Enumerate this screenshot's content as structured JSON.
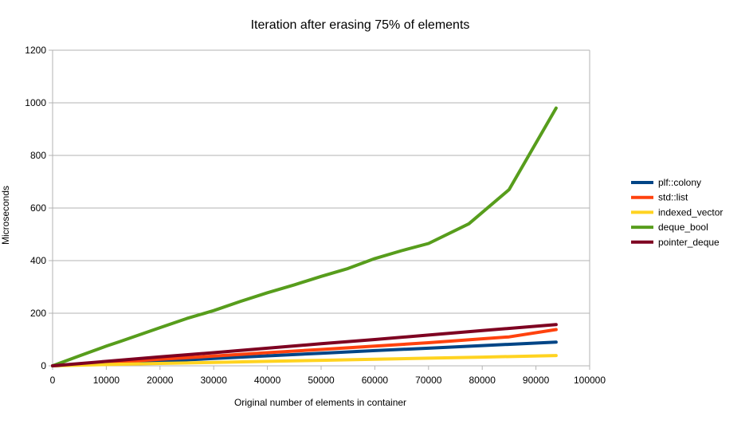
{
  "chart_data": {
    "type": "line",
    "title": "Iteration after erasing 75% of elements",
    "xlabel": "Original number of elements in container",
    "ylabel": "Microseconds",
    "xlim": [
      0,
      100000
    ],
    "ylim": [
      0,
      1200
    ],
    "xticks": [
      0,
      10000,
      20000,
      30000,
      40000,
      50000,
      60000,
      70000,
      80000,
      90000,
      100000
    ],
    "yticks": [
      0,
      200,
      400,
      600,
      800,
      1000,
      1200
    ],
    "grid": "horizontal",
    "legend_position": "right",
    "series": [
      {
        "name": "plf::colony",
        "color": "#004586",
        "x": [
          0,
          10000,
          20000,
          30000,
          40000,
          50000,
          60000,
          70000,
          80000,
          93750
        ],
        "values": [
          0,
          9,
          18,
          28,
          38,
          48,
          58,
          67,
          77,
          90
        ]
      },
      {
        "name": "std::list",
        "color": "#ff420e",
        "x": [
          0,
          10000,
          20000,
          30000,
          40000,
          50000,
          60000,
          70000,
          85000,
          93750
        ],
        "values": [
          0,
          12,
          25,
          37,
          50,
          62,
          75,
          88,
          110,
          138
        ]
      },
      {
        "name": "indexed_vector",
        "color": "#ffd320",
        "x": [
          0,
          10000,
          20000,
          30000,
          40000,
          50000,
          60000,
          70000,
          80000,
          93750
        ],
        "values": [
          0,
          5,
          9,
          13,
          17,
          21,
          25,
          29,
          33,
          39
        ]
      },
      {
        "name": "deque_bool",
        "color": "#579d1c",
        "x": [
          0,
          5000,
          10000,
          12500,
          20000,
          25000,
          30000,
          35000,
          40000,
          45000,
          50000,
          55000,
          60000,
          65000,
          70000,
          77500,
          85000,
          93750
        ],
        "values": [
          0,
          38,
          75,
          92,
          145,
          180,
          210,
          245,
          278,
          308,
          340,
          370,
          408,
          438,
          465,
          540,
          670,
          980
        ]
      },
      {
        "name": "pointer_deque",
        "color": "#7e0021",
        "x": [
          0,
          10000,
          20000,
          30000,
          40000,
          50000,
          60000,
          70000,
          80000,
          93750
        ],
        "values": [
          0,
          17,
          34,
          50,
          67,
          84,
          100,
          117,
          134,
          157
        ]
      }
    ]
  }
}
